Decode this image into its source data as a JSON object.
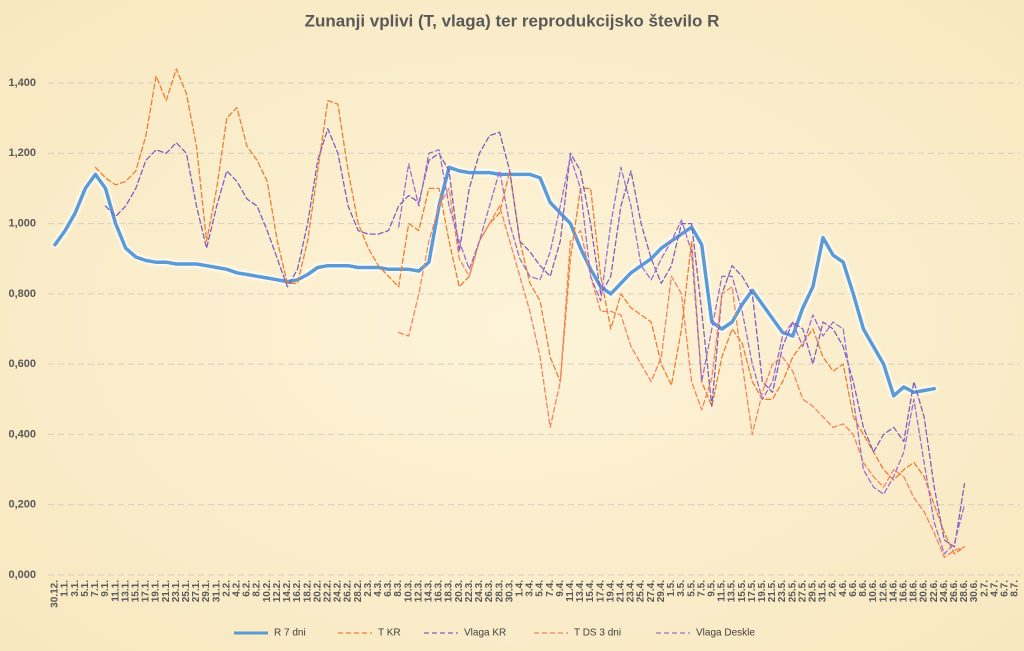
{
  "chart_data": {
    "type": "line",
    "title": "Zunanji vplivi (T, vlaga) ter reprodukcijsko število R",
    "categories": [
      "30.12.",
      "1.1.",
      "3.1.",
      "5.1.",
      "7.1.",
      "9.1.",
      "11.1.",
      "13.1.",
      "15.1.",
      "17.1.",
      "19.1.",
      "21.1.",
      "23.1.",
      "25.1.",
      "27.1.",
      "29.1.",
      "31.1.",
      "2.2.",
      "4.2.",
      "6.2.",
      "8.2.",
      "10.2.",
      "12.2.",
      "14.2.",
      "16.2.",
      "18.2.",
      "20.2.",
      "22.2.",
      "24.2.",
      "26.2.",
      "28.2.",
      "2.3.",
      "4.3.",
      "6.3.",
      "8.3.",
      "10.3.",
      "12.3.",
      "14.3.",
      "16.3.",
      "18.3.",
      "20.3.",
      "22.3.",
      "24.3.",
      "26.3.",
      "28.3.",
      "30.3.",
      "1.4.",
      "3.4.",
      "5.4.",
      "7.4.",
      "9.4.",
      "11.4.",
      "13.4.",
      "15.4.",
      "17.4.",
      "19.4.",
      "21.4.",
      "23.4.",
      "25.4.",
      "27.4.",
      "29.4.",
      "1.5.",
      "3.5.",
      "5.5.",
      "7.5.",
      "9.5.",
      "11.5.",
      "13.5.",
      "15.5.",
      "17.5.",
      "19.5.",
      "21.5.",
      "23.5.",
      "25.5.",
      "27.5.",
      "29.5.",
      "31.5.",
      "2.6.",
      "4.6.",
      "6.6.",
      "8.6.",
      "10.6.",
      "12.6.",
      "14.6.",
      "16.6.",
      "18.6.",
      "20.6.",
      "22.6.",
      "24.6.",
      "26.6.",
      "28.6.",
      "30.6.",
      "2.7.",
      "4.7.",
      "6.7.",
      "8.7."
    ],
    "ylim": [
      0,
      1.4
    ],
    "yticks": [
      {
        "value": 0,
        "label": "0,000"
      },
      {
        "value": 0.2,
        "label": "0,200"
      },
      {
        "value": 0.4,
        "label": "0,400"
      },
      {
        "value": 0.6,
        "label": "0,600"
      },
      {
        "value": 0.8,
        "label": "0,800"
      },
      {
        "value": 1.0,
        "label": "1,000"
      },
      {
        "value": 1.2,
        "label": "1,200"
      },
      {
        "value": 1.4,
        "label": "1,400"
      }
    ],
    "grid": true,
    "legend": "bottom",
    "series": [
      {
        "name": "R 7 dni",
        "color": "#5b9bd5",
        "dash": "solid",
        "values": [
          0.94,
          0.98,
          1.03,
          1.1,
          1.14,
          1.1,
          1.0,
          0.93,
          0.905,
          0.895,
          0.89,
          0.89,
          0.885,
          0.885,
          0.885,
          0.88,
          0.875,
          0.87,
          0.86,
          0.855,
          0.85,
          0.845,
          0.84,
          0.835,
          0.84,
          0.855,
          0.875,
          0.88,
          0.88,
          0.88,
          0.875,
          0.875,
          0.875,
          0.87,
          0.87,
          0.87,
          0.865,
          0.89,
          1.05,
          1.16,
          1.15,
          1.145,
          1.145,
          1.145,
          1.14,
          1.14,
          1.14,
          1.14,
          1.13,
          1.06,
          1.03,
          1.0,
          0.93,
          0.87,
          0.82,
          0.8,
          0.83,
          0.86,
          0.88,
          0.9,
          0.93,
          0.95,
          0.97,
          0.99,
          0.94,
          0.72,
          0.7,
          0.72,
          0.77,
          0.81,
          0.77,
          0.73,
          0.69,
          0.68,
          0.76,
          0.82,
          0.96,
          0.91,
          0.89,
          0.8,
          0.7,
          0.65,
          0.6,
          0.51,
          0.535,
          0.52,
          0.525,
          0.53,
          null,
          null,
          null,
          null,
          null,
          null,
          null,
          null
        ]
      },
      {
        "name": "T KR",
        "color": "#ed7d31",
        "dash": "dashed",
        "values": [
          null,
          null,
          null,
          null,
          1.16,
          1.13,
          1.11,
          1.12,
          1.15,
          1.25,
          1.42,
          1.35,
          1.44,
          1.37,
          1.22,
          0.95,
          1.1,
          1.3,
          1.33,
          1.22,
          1.18,
          1.12,
          0.95,
          0.83,
          0.83,
          0.95,
          1.15,
          1.35,
          1.34,
          1.15,
          1.0,
          0.93,
          0.88,
          0.85,
          0.82,
          1.0,
          0.98,
          1.1,
          1.1,
          0.95,
          0.82,
          0.85,
          0.95,
          1.0,
          1.03,
          1.15,
          0.95,
          0.83,
          0.78,
          0.62,
          0.55,
          0.9,
          1.1,
          1.1,
          0.85,
          0.7,
          0.8,
          0.76,
          0.74,
          0.72,
          0.6,
          0.54,
          0.7,
          0.95,
          0.55,
          0.48,
          0.62,
          0.7,
          0.66,
          0.55,
          0.5,
          0.5,
          0.55,
          0.62,
          0.66,
          0.7,
          0.62,
          0.58,
          0.6,
          0.45,
          0.4,
          0.35,
          0.3,
          0.27,
          0.3,
          0.32,
          0.28,
          0.2,
          0.12,
          0.06,
          0.08,
          null,
          null,
          null,
          null,
          null
        ]
      },
      {
        "name": "Vlaga KR",
        "color": "#7f5fbf",
        "dash": "dashed",
        "values": [
          null,
          null,
          null,
          null,
          null,
          1.05,
          1.02,
          1.05,
          1.1,
          1.18,
          1.21,
          1.2,
          1.23,
          1.2,
          1.05,
          0.93,
          1.05,
          1.15,
          1.12,
          1.07,
          1.05,
          0.98,
          0.9,
          0.82,
          0.87,
          1.0,
          1.18,
          1.27,
          1.2,
          1.05,
          0.98,
          0.97,
          0.97,
          0.98,
          1.05,
          1.08,
          1.06,
          1.18,
          1.2,
          1.15,
          0.92,
          1.1,
          1.2,
          1.25,
          1.26,
          1.15,
          0.95,
          0.92,
          0.88,
          0.85,
          0.95,
          1.2,
          1.15,
          1.0,
          0.8,
          0.85,
          1.05,
          1.15,
          1.0,
          0.9,
          0.83,
          0.88,
          1.0,
          1.0,
          0.75,
          0.48,
          0.8,
          0.88,
          0.85,
          0.8,
          0.55,
          0.52,
          0.65,
          0.72,
          0.7,
          0.6,
          0.72,
          0.7,
          0.65,
          0.55,
          0.42,
          0.35,
          0.4,
          0.42,
          0.38,
          0.55,
          0.45,
          0.25,
          0.1,
          0.08,
          0.26,
          null,
          null,
          null,
          null,
          null
        ]
      },
      {
        "name": "T DS 3 dni",
        "color": "#f4845f",
        "dash": "dashed",
        "values": [
          null,
          null,
          null,
          null,
          null,
          null,
          null,
          null,
          null,
          null,
          null,
          null,
          null,
          null,
          null,
          null,
          null,
          null,
          null,
          null,
          null,
          null,
          null,
          null,
          null,
          null,
          null,
          null,
          null,
          null,
          null,
          null,
          null,
          null,
          0.69,
          0.68,
          0.8,
          0.95,
          1.05,
          1.1,
          0.9,
          0.85,
          0.95,
          1.0,
          1.05,
          0.95,
          0.85,
          0.75,
          0.62,
          0.42,
          0.55,
          0.95,
          0.98,
          0.85,
          0.75,
          0.75,
          0.74,
          0.65,
          0.6,
          0.55,
          0.62,
          0.85,
          0.8,
          0.55,
          0.47,
          0.56,
          0.8,
          0.82,
          0.6,
          0.4,
          0.52,
          0.6,
          0.62,
          0.58,
          0.5,
          0.48,
          0.45,
          0.42,
          0.43,
          0.4,
          0.32,
          0.28,
          0.25,
          0.3,
          0.28,
          0.22,
          0.18,
          0.12,
          0.05,
          0.07,
          0.08,
          null,
          null,
          null,
          null,
          null
        ]
      },
      {
        "name": "Vlaga Deskle",
        "color": "#9b6fd0",
        "dash": "dashed",
        "values": [
          null,
          null,
          null,
          null,
          null,
          null,
          null,
          null,
          null,
          null,
          null,
          null,
          null,
          null,
          null,
          null,
          null,
          null,
          null,
          null,
          null,
          null,
          null,
          null,
          null,
          null,
          null,
          null,
          null,
          null,
          null,
          null,
          null,
          null,
          0.99,
          1.17,
          1.05,
          1.2,
          1.21,
          1.05,
          0.95,
          0.87,
          0.95,
          1.05,
          1.15,
          1.0,
          0.9,
          0.85,
          0.84,
          0.92,
          1.05,
          1.19,
          1.1,
          0.85,
          0.78,
          1.0,
          1.16,
          1.05,
          0.88,
          0.84,
          0.9,
          0.95,
          1.01,
          0.92,
          0.55,
          0.7,
          0.85,
          0.85,
          0.75,
          0.6,
          0.5,
          0.55,
          0.68,
          0.72,
          0.65,
          0.74,
          0.68,
          0.72,
          0.7,
          0.5,
          0.3,
          0.25,
          0.23,
          0.28,
          0.35,
          0.5,
          0.32,
          0.15,
          0.06,
          0.09,
          0.2,
          null,
          null,
          null,
          null,
          null
        ]
      }
    ]
  }
}
